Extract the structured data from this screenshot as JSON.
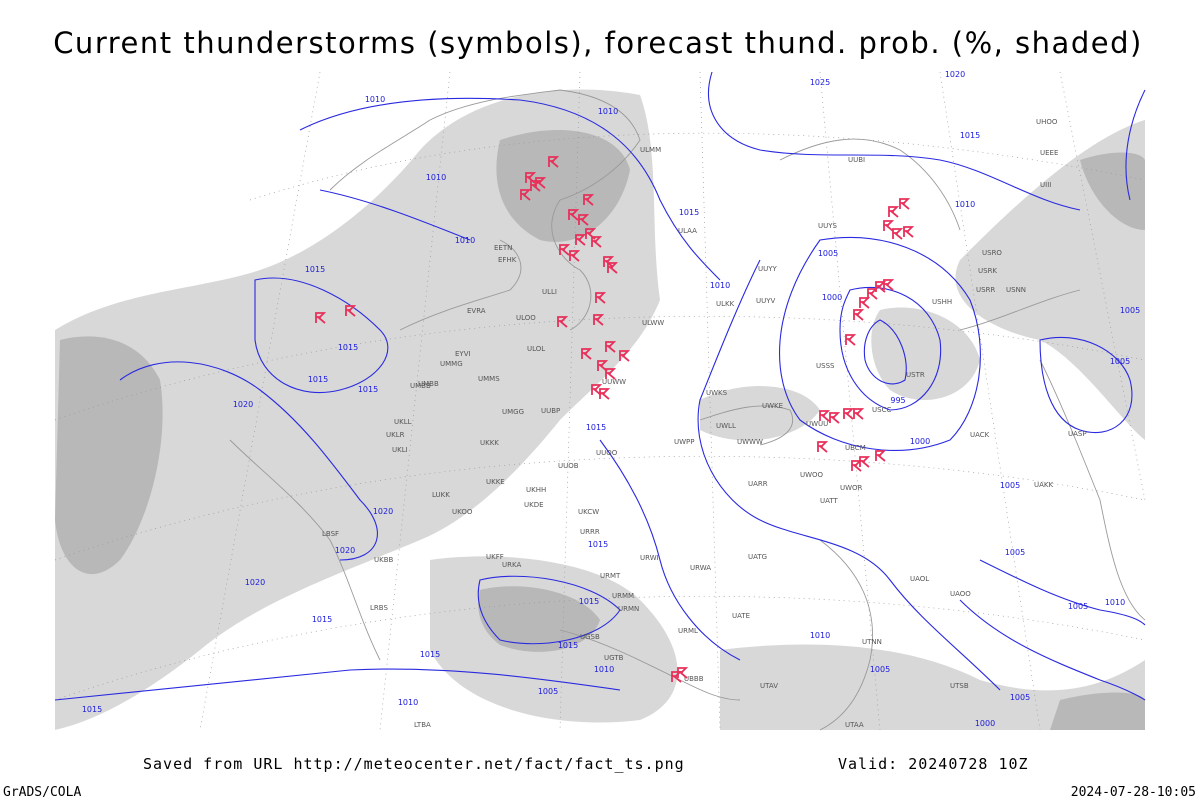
{
  "title": "Current thunderstorms (symbols), forecast thund. prob. (%, shaded)",
  "footer": {
    "source": "Saved from URL http://meteocenter.net/fact/fact_ts.png",
    "valid": "Valid: 20240728 10Z",
    "credit": "GrADS/COLA",
    "timestamp": "2024-07-28-10:05"
  },
  "isobars": [
    1010,
    1010,
    1010,
    1010,
    1015,
    1015,
    1015,
    1015,
    1020,
    1020,
    1020,
    1020,
    1015,
    1015,
    1015,
    1015,
    1015,
    1015,
    1015,
    1025,
    1020,
    1015,
    1010,
    1005,
    1010,
    1000,
    995,
    1000,
    1005,
    1005,
    1005,
    1005,
    1010,
    1005,
    1010,
    1005,
    1010,
    1015,
    1000,
    1005,
    1010,
    1005
  ],
  "stations": [
    "ULAA",
    "ULKK",
    "ULWW",
    "ULOO",
    "ULOL",
    "UUYY",
    "UUYS",
    "UUYV",
    "ULLI",
    "EFHK",
    "EETN",
    "EVRA",
    "EYVI",
    "UMMG",
    "UMMS",
    "UMBB",
    "UMGG",
    "UUBP",
    "UUOB",
    "UUOO",
    "UUWW",
    "UWPP",
    "UWKS",
    "UWWW",
    "UWLL",
    "UWKE",
    "UWUU",
    "USCC",
    "USSS",
    "USTR",
    "USHH",
    "USRR",
    "USRK",
    "USNN",
    "USRO",
    "UATT",
    "UARR",
    "UWOO",
    "UWOR",
    "UBCM",
    "UATG",
    "UATE",
    "UAOL",
    "UAOO",
    "UACK",
    "UASP",
    "UAKK",
    "UTNN",
    "UTAV",
    "UTSB",
    "UTAA",
    "URWA",
    "URWI",
    "URRR",
    "URMT",
    "URMM",
    "URMN",
    "URML",
    "UKDE",
    "UKCW",
    "UKKK",
    "UKOO",
    "UKFF",
    "UKHH",
    "UKKE",
    "UKLL",
    "UKBB",
    "URKA",
    "LRBS",
    "LBSF",
    "LUKK",
    "UKLR",
    "UKLI",
    "UMBB",
    "UGTB",
    "UGSB",
    "UBBB",
    "LTBA",
    "UUBI",
    "ULMM",
    "UHOO",
    "UEEE",
    "UIII"
  ]
}
